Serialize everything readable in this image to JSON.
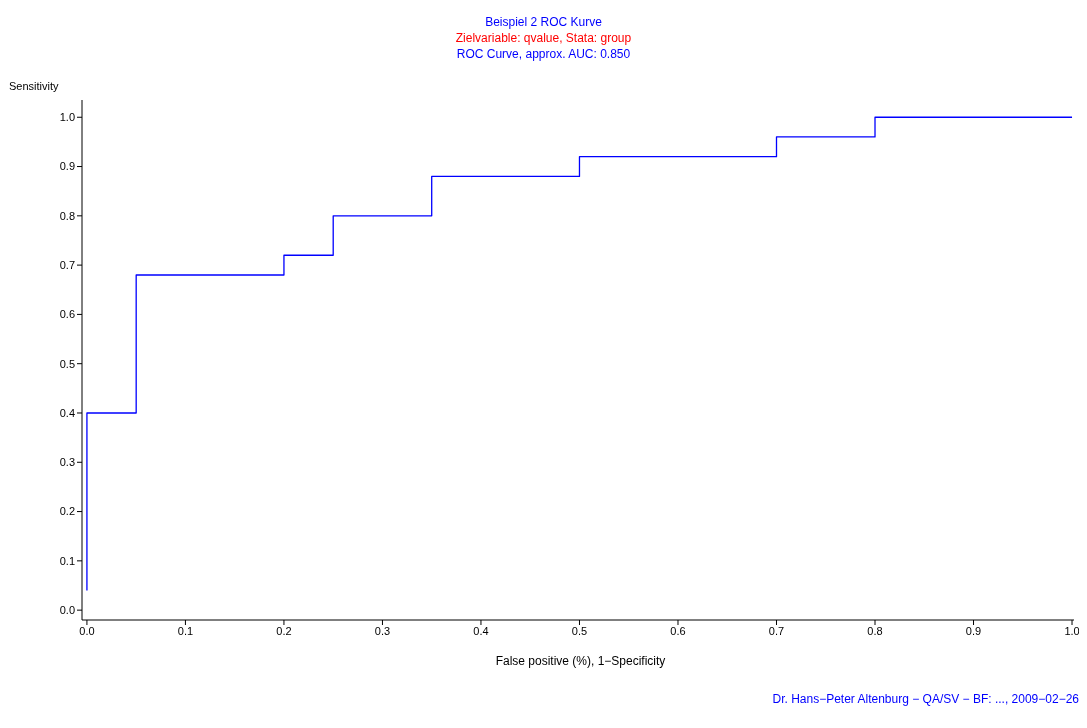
{
  "chart_data": {
    "type": "step",
    "title": "Beispiel 2 ROC Kurve",
    "subtitle": "Zielvariable: qvalue, Stata: group",
    "xlabel": "False positive (%), 1−Specificity",
    "ylabel": "Sensitivity",
    "annotations": [
      "ROC Curve, approx. AUC: 0.850",
      "Dr. Hans−Peter Altenburg − QA/SV − BF: ..., 2009−02−26"
    ],
    "series": [
      {
        "color": "#0000ff",
        "x": [
          0,
          0,
          0.05,
          0.2,
          0.25,
          0.35,
          0.5,
          0.7,
          0.8,
          1.0
        ],
        "values": [
          0.04,
          0.4,
          0.68,
          0.72,
          0.8,
          0.88,
          0.92,
          0.96,
          1.0,
          1.0
        ]
      }
    ],
    "xlim": [
      -0.005,
      1.002
    ],
    "ylim": [
      -0.02,
      1.035
    ],
    "xticks": [
      {
        "value": 0,
        "label": "0.0"
      },
      {
        "value": 0.1,
        "label": "0.1"
      },
      {
        "value": 0.2,
        "label": "0.2"
      },
      {
        "value": 0.3,
        "label": "0.3"
      },
      {
        "value": 0.4,
        "label": "0.4"
      },
      {
        "value": 0.5,
        "label": "0.5"
      },
      {
        "value": 0.6,
        "label": "0.6"
      },
      {
        "value": 0.7,
        "label": "0.7"
      },
      {
        "value": 0.8,
        "label": "0.8"
      },
      {
        "value": 0.9,
        "label": "0.9"
      },
      {
        "value": 1,
        "label": "1.0"
      }
    ],
    "yticks": [
      {
        "value": 0,
        "label": "0.0"
      },
      {
        "value": 0.1,
        "label": "0.1"
      },
      {
        "value": 0.2,
        "label": "0.2"
      },
      {
        "value": 0.3,
        "label": "0.3"
      },
      {
        "value": 0.4,
        "label": "0.4"
      },
      {
        "value": 0.5,
        "label": "0.5"
      },
      {
        "value": 0.6,
        "label": "0.6"
      },
      {
        "value": 0.7,
        "label": "0.7"
      },
      {
        "value": 0.8,
        "label": "0.8"
      },
      {
        "value": 0.9,
        "label": "0.9"
      },
      {
        "value": 1,
        "label": "1.0"
      }
    ],
    "grid": false,
    "legend": false,
    "marker": "none",
    "line_style": "solid"
  }
}
